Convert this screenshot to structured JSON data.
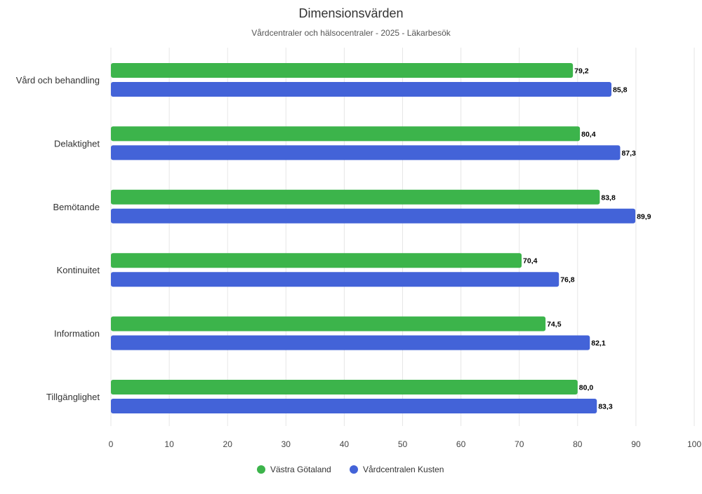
{
  "chart_data": {
    "type": "bar",
    "orientation": "horizontal",
    "title": "Dimensionsvärden",
    "subtitle": "Vårdcentraler och hälsocentraler - 2025 - Läkarbesök",
    "categories": [
      "Vård och behandling",
      "Delaktighet",
      "Bemötande",
      "Kontinuitet",
      "Information",
      "Tillgänglighet"
    ],
    "series": [
      {
        "name": "Västra Götaland",
        "color": "#3cb44b",
        "values": [
          79.2,
          80.4,
          83.8,
          70.4,
          74.5,
          80.0
        ],
        "labels": [
          "79,2",
          "80,4",
          "83,8",
          "70,4",
          "74,5",
          "80,0"
        ]
      },
      {
        "name": "Vårdcentralen Kusten",
        "color": "#4363d8",
        "values": [
          85.8,
          87.3,
          89.9,
          76.8,
          82.1,
          83.3
        ],
        "labels": [
          "85,8",
          "87,3",
          "89,9",
          "76,8",
          "82,1",
          "83,3"
        ]
      }
    ],
    "xlim": [
      0,
      100
    ],
    "xticks": [
      "0",
      "10",
      "20",
      "30",
      "40",
      "50",
      "60",
      "70",
      "80",
      "90",
      "100"
    ],
    "grid": true,
    "legend_position": "bottom"
  }
}
